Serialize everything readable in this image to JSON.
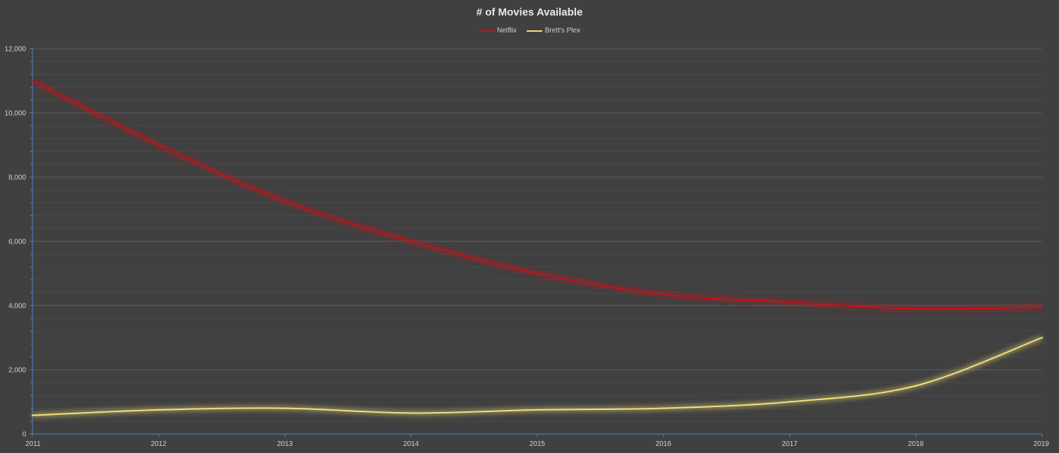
{
  "chart_data": {
    "type": "line",
    "title": "# of Movies Available",
    "xlabel": "",
    "ylabel": "",
    "x": [
      "2011",
      "2012",
      "2013",
      "2014",
      "2015",
      "2016",
      "2017",
      "2018",
      "2019"
    ],
    "ylim": [
      0,
      12000
    ],
    "y_ticks": [
      0,
      2000,
      4000,
      6000,
      8000,
      10000,
      12000
    ],
    "y_tick_labels": [
      "0",
      "2,000",
      "4,000",
      "6,000",
      "8,000",
      "10,000",
      "12,000"
    ],
    "grid": true,
    "legend_position": "top-center",
    "series": [
      {
        "name": "Netflix",
        "color": "#c0141a",
        "values": [
          11000,
          9000,
          7250,
          6000,
          5000,
          4350,
          4100,
          3900,
          3950
        ]
      },
      {
        "name": "Brett's Plex",
        "color": "#f3e07a",
        "values": [
          580,
          750,
          800,
          650,
          750,
          800,
          1000,
          1500,
          3000
        ]
      }
    ]
  }
}
